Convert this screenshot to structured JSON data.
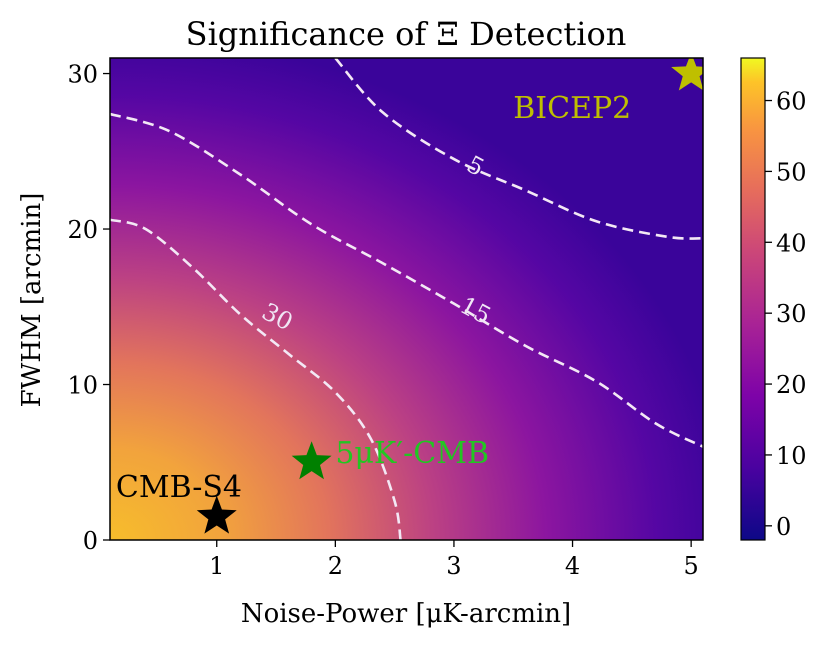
{
  "chart_data": {
    "type": "heatmap",
    "title": "Significance of Ξ Detection",
    "xlabel": "Noise-Power [μK-arcmin]",
    "ylabel": "FWHM [arcmin]",
    "xlim": [
      0.1,
      5.1
    ],
    "ylim": [
      0,
      31
    ],
    "xticks": [
      1,
      2,
      3,
      4,
      5
    ],
    "xtick_labels": [
      "1",
      "2",
      "3",
      "4",
      "5"
    ],
    "yticks": [
      0,
      10,
      20,
      30
    ],
    "ytick_labels": [
      "0",
      "10",
      "20",
      "30"
    ],
    "colorbar": {
      "range": [
        -2,
        66
      ],
      "ticks": [
        0,
        10,
        20,
        30,
        40,
        50,
        60
      ],
      "tick_labels": [
        "0",
        "10",
        "20",
        "30",
        "40",
        "50",
        "60"
      ],
      "colormap": "plasma"
    },
    "contours": [
      {
        "level": 5,
        "label": "5",
        "points": [
          [
            2.0,
            31.0
          ],
          [
            2.4,
            27.5
          ],
          [
            3.0,
            24.5
          ],
          [
            3.6,
            22.5
          ],
          [
            4.2,
            20.5
          ],
          [
            4.8,
            19.5
          ],
          [
            5.1,
            19.4
          ]
        ],
        "label_at": [
          3.15,
          23.6
        ]
      },
      {
        "level": 15,
        "label": "15",
        "points": [
          [
            0.1,
            27.4
          ],
          [
            0.6,
            26.3
          ],
          [
            1.2,
            23.5
          ],
          [
            1.8,
            20.3
          ],
          [
            2.4,
            17.8
          ],
          [
            3.0,
            15.2
          ],
          [
            3.6,
            12.5
          ],
          [
            4.2,
            10.2
          ],
          [
            4.7,
            7.5
          ],
          [
            5.1,
            6.0
          ]
        ],
        "label_at": [
          3.15,
          14.3
        ]
      },
      {
        "level": 30,
        "label": "30",
        "points": [
          [
            0.1,
            20.6
          ],
          [
            0.4,
            20.0
          ],
          [
            0.8,
            17.5
          ],
          [
            1.2,
            14.5
          ],
          [
            1.6,
            12.0
          ],
          [
            2.0,
            9.5
          ],
          [
            2.3,
            6.5
          ],
          [
            2.5,
            2.5
          ],
          [
            2.55,
            0.0
          ]
        ],
        "label_at": [
          1.48,
          13.9
        ]
      }
    ],
    "markers": [
      {
        "label": "BICEP2",
        "x": 5.0,
        "y": 30.0,
        "color": "#bfbf00",
        "label_x": 3.5,
        "label_y": 27.8
      },
      {
        "label": "5μK′-CMB",
        "x": 1.8,
        "y": 5.0,
        "color": "#008000",
        "label_color": "#22c622",
        "label_x": 2.0,
        "label_y": 5.6
      },
      {
        "label": "CMB-S4",
        "x": 1.0,
        "y": 1.5,
        "color": "#000000",
        "label_x": 0.15,
        "label_y": 3.4
      }
    ]
  }
}
